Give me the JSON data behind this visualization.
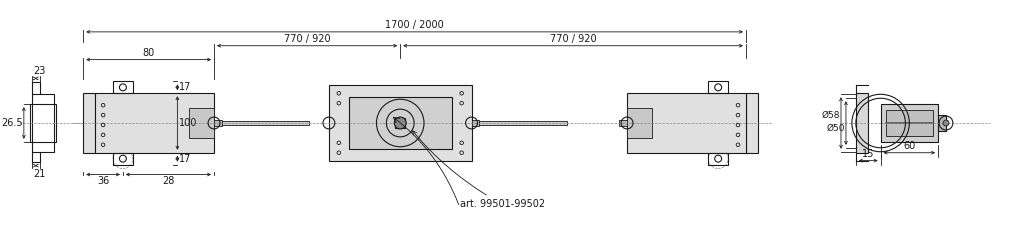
{
  "bg_color": "#ffffff",
  "line_color": "#1a1a1a",
  "font_size": 7,
  "fig_width": 10.18,
  "fig_height": 2.46,
  "annotations": {
    "dim_23": "23",
    "dim_26_5": "26.5",
    "dim_21": "21",
    "dim_17a": "17",
    "dim_100": "100",
    "dim_17b": "17",
    "dim_80": "80",
    "dim_770_920a": "770 / 920",
    "dim_1700_2000": "1700 / 2000",
    "dim_770_920b": "770 / 920",
    "dim_36": "36",
    "dim_28": "28",
    "dim_15": "15",
    "dim_60": "60",
    "dim_58": "Ø58",
    "dim_50": "Ø50",
    "art": "art. 99501-99502"
  }
}
